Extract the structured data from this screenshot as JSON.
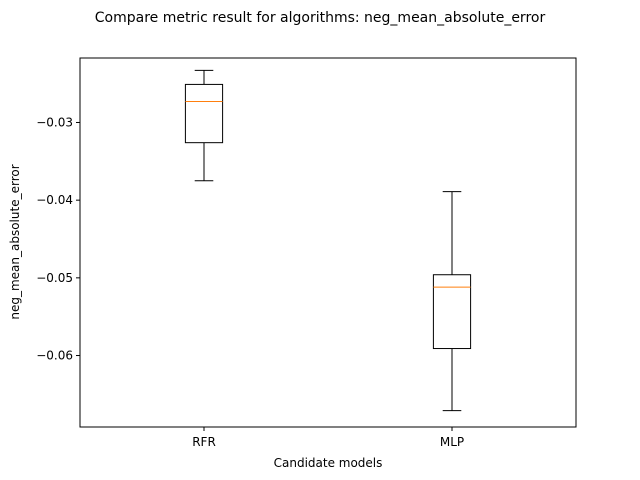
{
  "chart_data": {
    "type": "box",
    "title": "Compare metric result for algorithms: neg_mean_absolute_error",
    "xlabel": "Candidate models",
    "ylabel": "neg_mean_absolute_error",
    "categories": [
      "RFR",
      "MLP"
    ],
    "boxes": [
      {
        "label": "RFR",
        "whisker_low": -0.0375,
        "q1": -0.0326,
        "median": -0.0273,
        "q3": -0.0251,
        "whisker_high": -0.0233
      },
      {
        "label": "MLP",
        "whisker_low": -0.0671,
        "q1": -0.0591,
        "median": -0.0512,
        "q3": -0.0496,
        "whisker_high": -0.0389
      }
    ],
    "yticks": [
      -0.06,
      -0.05,
      -0.04,
      -0.03
    ],
    "ytick_labels": [
      "−0.06",
      "−0.05",
      "−0.04",
      "−0.03"
    ],
    "ylim": [
      -0.0692,
      -0.0217
    ],
    "grid": false,
    "colors": {
      "box": "#000000",
      "median": "#ff7f0e",
      "axes": "#000000"
    }
  }
}
